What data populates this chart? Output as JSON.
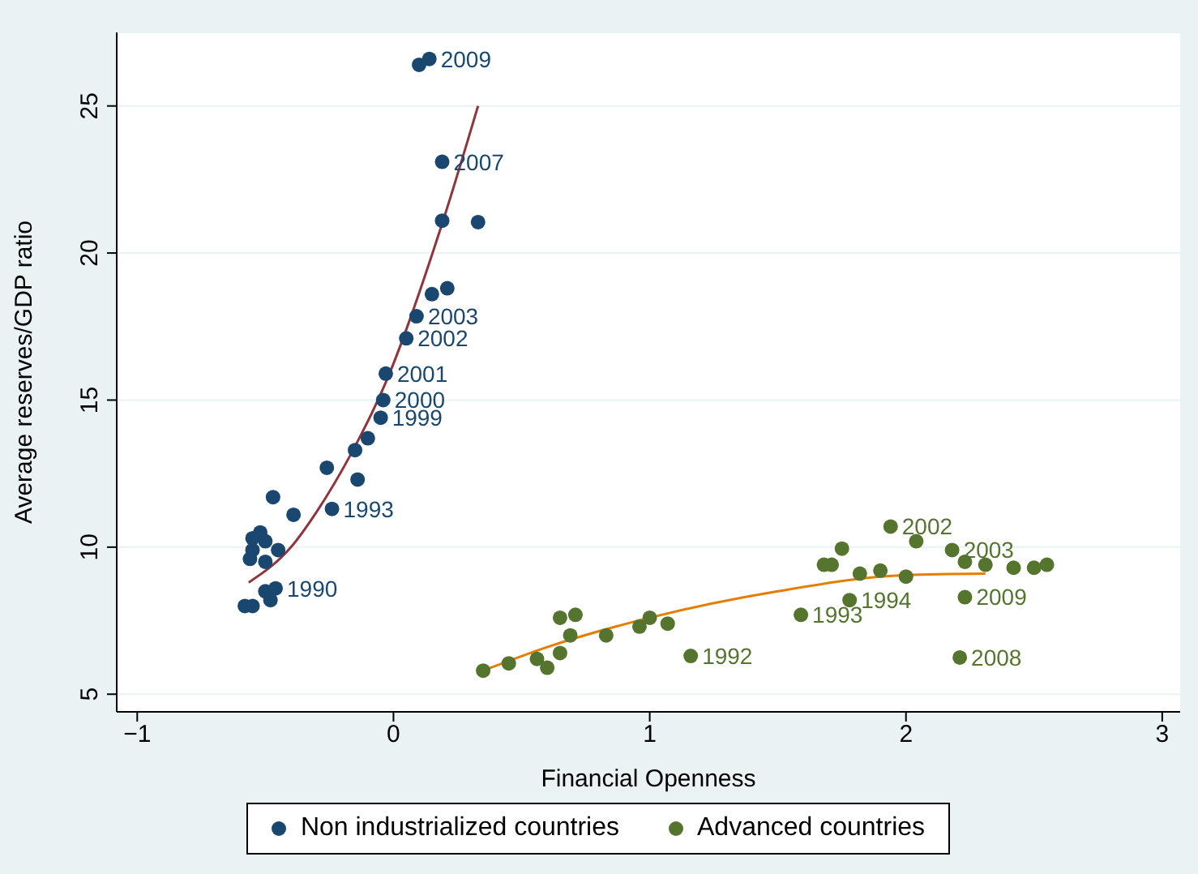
{
  "chart_data": {
    "type": "scatter",
    "xlabel": "Financial Openness",
    "ylabel": "Average reserves/GDP ratio",
    "xlim": [
      -1.08,
      3.07
    ],
    "xticks": [
      -1,
      0,
      1,
      2,
      3
    ],
    "ylim": [
      4.4,
      27.5
    ],
    "yticks": [
      5,
      10,
      15,
      20,
      25
    ],
    "grid": "y",
    "legend": "bottom",
    "marker": "circle",
    "series": [
      {
        "name": "Non industrialized countries",
        "color": "#1a476f",
        "type": "scatter",
        "x": [
          -0.5,
          -0.55,
          -0.58,
          -0.48,
          -0.56,
          -0.55,
          -0.5,
          -0.45,
          -0.55,
          -0.52,
          -0.46,
          -0.5,
          -0.39,
          -0.24,
          -0.47,
          -0.14,
          -0.26,
          -0.15,
          -0.1,
          -0.05,
          -0.04,
          -0.03,
          0.05,
          0.09,
          0.15,
          0.21,
          0.33,
          0.19,
          0.19,
          0.14,
          0.1
        ],
        "values": [
          8.5,
          8.0,
          8.0,
          8.2,
          9.6,
          9.9,
          9.5,
          9.9,
          10.3,
          10.5,
          8.6,
          10.2,
          11.1,
          11.3,
          11.7,
          12.3,
          12.7,
          13.3,
          13.7,
          14.4,
          15.0,
          15.9,
          17.1,
          17.85,
          18.6,
          18.8,
          21.05,
          23.1,
          21.1,
          26.6,
          26.4
        ]
      },
      {
        "name": "Advanced countries",
        "color": "#55752f",
        "type": "scatter",
        "x": [
          0.35,
          0.45,
          0.56,
          0.6,
          0.65,
          0.69,
          0.65,
          0.71,
          0.83,
          0.96,
          1.0,
          1.07,
          1.16,
          1.59,
          1.78,
          1.68,
          1.71,
          1.82,
          1.75,
          1.9,
          2.0,
          2.04,
          1.94,
          2.18,
          2.31,
          2.42,
          2.5,
          2.55,
          2.21,
          2.23,
          2.23
        ],
        "values": [
          5.8,
          6.05,
          6.2,
          5.9,
          6.4,
          7.0,
          7.6,
          7.7,
          7.0,
          7.3,
          7.6,
          7.4,
          6.3,
          7.7,
          8.2,
          9.4,
          9.4,
          9.1,
          9.95,
          9.2,
          9.0,
          10.2,
          10.7,
          9.9,
          9.4,
          9.3,
          9.3,
          9.4,
          6.25,
          8.3,
          9.5
        ]
      },
      {
        "color": "#90353b",
        "type": "line",
        "marker": "none",
        "x": [
          -0.565,
          -0.4,
          -0.3,
          -0.17,
          -0.03,
          0.19,
          0.33
        ],
        "values": [
          8.8,
          10.0,
          11.2,
          13.1,
          15.6,
          21.0,
          25.0
        ]
      },
      {
        "color": "#e37e00",
        "type": "line",
        "marker": "none",
        "x": [
          0.35,
          0.6,
          1.0,
          1.5,
          2.0,
          2.31
        ],
        "values": [
          5.8,
          6.6,
          7.6,
          8.5,
          9.05,
          9.1
        ]
      }
    ],
    "annotations": [
      {
        "text": "2009",
        "x": 0.14,
        "y": 26.6
      },
      {
        "text": "2007",
        "x": 0.19,
        "y": 23.1
      },
      {
        "text": "2003",
        "x": 0.09,
        "y": 17.85
      },
      {
        "text": "2002",
        "x": 0.05,
        "y": 17.1
      },
      {
        "text": "2001",
        "x": -0.03,
        "y": 15.9
      },
      {
        "text": "2000",
        "x": -0.04,
        "y": 15.0
      },
      {
        "text": "1999",
        "x": -0.05,
        "y": 14.4
      },
      {
        "text": "1993",
        "x": -0.24,
        "y": 11.3
      },
      {
        "text": "1990",
        "x": -0.46,
        "y": 8.6
      },
      {
        "text": "2002",
        "x": 1.94,
        "y": 10.7
      },
      {
        "text": "2003",
        "x": 2.18,
        "y": 9.9
      },
      {
        "text": "1994",
        "x": 1.78,
        "y": 8.2
      },
      {
        "text": "1993",
        "x": 1.59,
        "y": 7.7
      },
      {
        "text": "1992",
        "x": 1.16,
        "y": 6.3
      },
      {
        "text": "2009",
        "x": 2.23,
        "y": 8.3
      },
      {
        "text": "2008",
        "x": 2.21,
        "y": 6.25
      }
    ]
  }
}
